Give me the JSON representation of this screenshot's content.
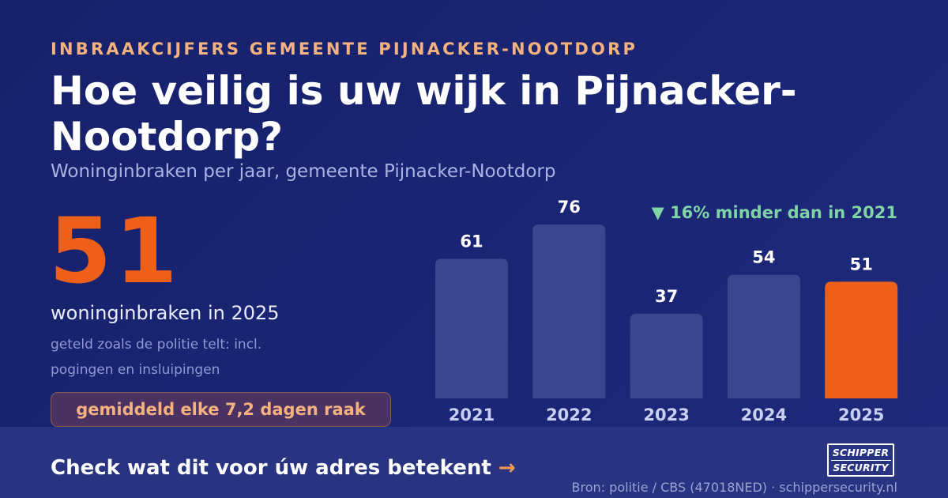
{
  "kicker": "INBRAAKCIJFERS GEMEENTE PIJNACKER-NOOTDORP",
  "title": "Hoe veilig is uw wijk in Pijnacker-Nootdorp?",
  "subtitle": "Woninginbraken per jaar, gemeente Pijnacker-Nootdorp",
  "highlight": {
    "number": "51",
    "caption": "woninginbraken in 2025",
    "note": "geteld zoals de politie telt: incl. pogingen en insluipingen",
    "frequency": "gemiddeld elke 7,2 dagen raak"
  },
  "change_label": "▼ 16% minder dan in 2021",
  "footer": {
    "cta": "Check wat dit voor úw adres betekent",
    "cta_arrow": "→",
    "source": "Bron: politie / CBS (47018NED) · schippersecurity.nl",
    "logo_line1": "SCHIPPER",
    "logo_line2": "SECURITY"
  },
  "colors": {
    "background": "#17216a",
    "bar_default": "#3a478c",
    "bar_highlight": "#ee5f1a",
    "accent_orange": "#f5b27e",
    "accent_green": "#7fd3a4",
    "value_label": "#ffffff",
    "year_label": "#c7cff2"
  },
  "chart_data": {
    "type": "bar",
    "categories": [
      "2021",
      "2022",
      "2023",
      "2024",
      "2025"
    ],
    "values": [
      61,
      76,
      37,
      54,
      51
    ],
    "highlight_category": "2025",
    "title": "",
    "xlabel": "",
    "ylabel": "",
    "ylim": [
      0,
      76
    ],
    "grid": false,
    "legend": "none"
  }
}
